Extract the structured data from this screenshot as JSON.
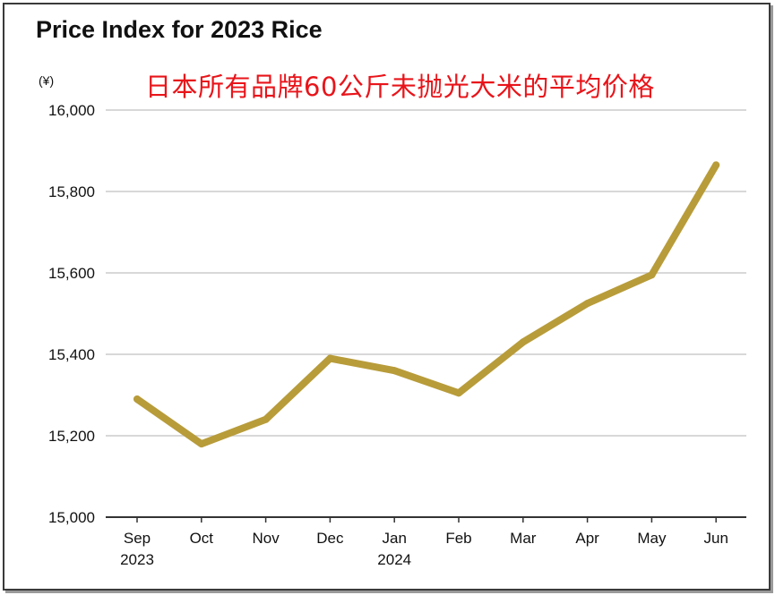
{
  "title": "Price Index for 2023 Rice",
  "subtitle": "日本所有品牌60公斤未抛光大米的平均价格",
  "y_unit": "(¥)",
  "colors": {
    "line": "#b89c3a",
    "grid": "#cccccc",
    "axis": "#333333"
  },
  "chart_data": {
    "type": "line",
    "title": "Price Index for 2023 Rice",
    "subtitle": "日本所有品牌60公斤未抛光大米的平均价格",
    "ylabel": "(¥)",
    "ylim": [
      15000,
      16000
    ],
    "yticks": [
      15000,
      15200,
      15400,
      15600,
      15800,
      16000
    ],
    "ytick_labels": [
      "15,000",
      "15,200",
      "15,400",
      "15,600",
      "15,800",
      "16,000"
    ],
    "categories": [
      "Sep 2023",
      "Oct",
      "Nov",
      "Dec",
      "Jan 2024",
      "Feb",
      "Mar",
      "Apr",
      "May",
      "Jun"
    ],
    "xtick_labels": [
      [
        "Sep",
        "2023"
      ],
      [
        "Oct"
      ],
      [
        "Nov"
      ],
      [
        "Dec"
      ],
      [
        "Jan",
        "2024"
      ],
      [
        "Feb"
      ],
      [
        "Mar"
      ],
      [
        "Apr"
      ],
      [
        "May"
      ],
      [
        "Jun"
      ]
    ],
    "values": [
      15290,
      15180,
      15240,
      15390,
      15360,
      15305,
      15430,
      15525,
      15595,
      15865
    ],
    "grid": true,
    "legend": false
  }
}
